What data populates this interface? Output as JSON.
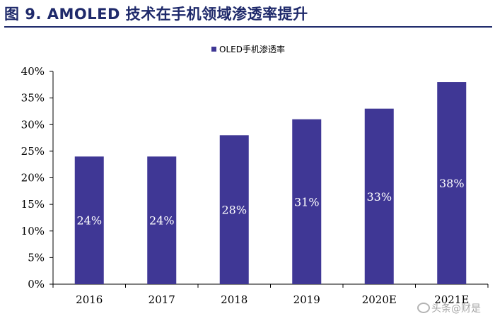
{
  "title": "图 9. AMOLED 技术在手机领域渗透率提升",
  "watermark": "头条@财是",
  "colors": {
    "bar": "#3f3795",
    "title": "#1f2a6b"
  },
  "chart_data": {
    "type": "bar",
    "categories": [
      "2016",
      "2017",
      "2018",
      "2019",
      "2020E",
      "2021E"
    ],
    "series": [
      {
        "name": "OLED手机渗透率",
        "values": [
          24,
          24,
          28,
          31,
          33,
          38
        ]
      }
    ],
    "data_labels": [
      "24%",
      "24%",
      "28%",
      "31%",
      "33%",
      "38%"
    ],
    "ylim": [
      0,
      40
    ],
    "yticks": [
      0,
      5,
      10,
      15,
      20,
      25,
      30,
      35,
      40
    ],
    "ytick_labels": [
      "0%",
      "5%",
      "10%",
      "15%",
      "20%",
      "25%",
      "30%",
      "35%",
      "40%"
    ],
    "legend": "top-center",
    "grid": false
  }
}
